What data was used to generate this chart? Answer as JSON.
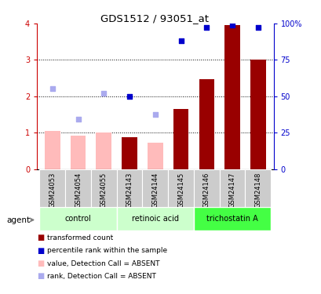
{
  "title": "GDS1512 / 93051_at",
  "samples": [
    "GSM24053",
    "GSM24054",
    "GSM24055",
    "GSM24143",
    "GSM24144",
    "GSM24145",
    "GSM24146",
    "GSM24147",
    "GSM24148"
  ],
  "groups": [
    {
      "label": "control",
      "color": "#bbffbb"
    },
    {
      "label": "retinoic acid",
      "color": "#bbffbb"
    },
    {
      "label": "trichostatin A",
      "color": "#66ff66"
    }
  ],
  "bar_values": [
    1.05,
    0.92,
    1.0,
    0.87,
    0.72,
    1.65,
    2.47,
    3.95,
    3.0
  ],
  "bar_absent": [
    true,
    true,
    true,
    false,
    true,
    false,
    false,
    false,
    false
  ],
  "rank_values": [
    2.22,
    1.37,
    2.08,
    2.0,
    1.5,
    3.52,
    3.9,
    3.95,
    3.9
  ],
  "rank_absent": [
    true,
    true,
    true,
    false,
    true,
    false,
    false,
    false,
    false
  ],
  "ylim": [
    0,
    4
  ],
  "yticks": [
    0,
    1,
    2,
    3,
    4
  ],
  "ytick_labels_left": [
    "0",
    "1",
    "2",
    "3",
    "4"
  ],
  "ytick_labels_right": [
    "0",
    "25",
    "50",
    "75",
    "100%"
  ],
  "bar_color_present": "#990000",
  "bar_color_absent": "#ffbbbb",
  "rank_color_present": "#0000cc",
  "rank_color_absent": "#aaaaee",
  "left_label_color": "#cc0000",
  "right_label_color": "#0000cc",
  "group_colors": [
    "#ccffcc",
    "#ccffcc",
    "#44ff44"
  ],
  "sample_box_color": "#cccccc",
  "agent_label": "agent",
  "legend_items": [
    {
      "label": "transformed count",
      "color": "#990000"
    },
    {
      "label": "percentile rank within the sample",
      "color": "#0000cc"
    },
    {
      "label": "value, Detection Call = ABSENT",
      "color": "#ffbbbb"
    },
    {
      "label": "rank, Detection Call = ABSENT",
      "color": "#aaaaee"
    }
  ]
}
